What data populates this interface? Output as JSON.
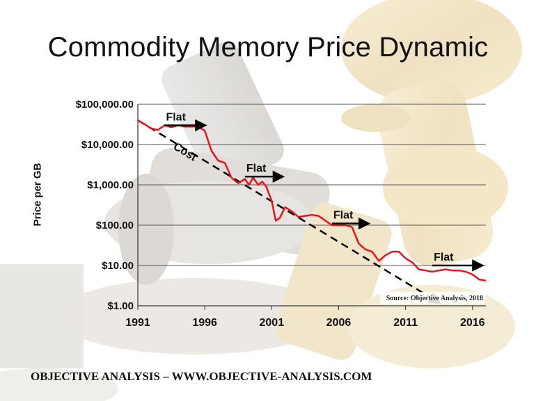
{
  "title": "Commodity Memory Price Dynamic",
  "footer": "OBJECTIVE ANALYSIS – WWW.OBJECTIVE-ANALYSIS.COM",
  "chart_data": {
    "type": "line",
    "title": "Commodity Memory Price Dynamic",
    "ylabel": "Price per GB",
    "xlabel": "",
    "yscale": "log",
    "ylim": [
      1,
      100000
    ],
    "xlim": [
      1991,
      2017
    ],
    "xticks": [
      1991,
      1996,
      2001,
      2006,
      2011,
      2016
    ],
    "xtick_labels": [
      "1991",
      "1996",
      "2001",
      "2006",
      "2011",
      "2016"
    ],
    "yticks": [
      1,
      10,
      100,
      1000,
      10000,
      100000
    ],
    "ytick_labels": [
      "$1.00",
      "$10.00",
      "$100.00",
      "$1,000.00",
      "$10,000.00",
      "$100,000.00"
    ],
    "grid": "horizontal",
    "series": [
      {
        "color": "#e8141b",
        "x": [
          1991,
          1991.5,
          1992,
          1992.5,
          1993,
          1993.5,
          1994,
          1994.5,
          1995,
          1995.5,
          1996,
          1996.5,
          1997,
          1997.5,
          1998,
          1998.5,
          1999,
          1999.3,
          1999.6,
          2000,
          2000.3,
          2000.6,
          2001,
          2001.3,
          2001.6,
          2002,
          2002.5,
          2003,
          2003.5,
          2004,
          2004.5,
          2005,
          2005.5,
          2006,
          2006.5,
          2007,
          2007.5,
          2008,
          2008.5,
          2009,
          2009.5,
          2010,
          2010.5,
          2011,
          2011.5,
          2012,
          2012.5,
          2013,
          2013.5,
          2014,
          2014.5,
          2015,
          2015.5,
          2016,
          2016.5,
          2017
        ],
        "y": [
          40000,
          32000,
          25000,
          23000,
          30000,
          27000,
          30000,
          28000,
          28000,
          28000,
          22000,
          7000,
          4000,
          3500,
          1500,
          1100,
          1400,
          1000,
          1500,
          1000,
          1200,
          900,
          400,
          130,
          150,
          280,
          220,
          160,
          170,
          180,
          170,
          130,
          100,
          100,
          100,
          90,
          35,
          25,
          22,
          13,
          18,
          22,
          22,
          15,
          12,
          8,
          7.5,
          7,
          7.5,
          8,
          7.5,
          7.5,
          7,
          6,
          4.5,
          4.2
        ]
      }
    ],
    "annotations": [
      {
        "text": "Flat",
        "x_start": 1993,
        "x_end": 1996,
        "y": 30000
      },
      {
        "text": "Flat",
        "x_start": 1999,
        "x_end": 2001.8,
        "y": 1600
      },
      {
        "text": "Flat",
        "x_start": 2005.5,
        "x_end": 2008.2,
        "y": 110
      },
      {
        "text": "Flat",
        "x_start": 2013,
        "x_end": 2016.7,
        "y": 10
      },
      {
        "text": "Cost",
        "x_start": 1991,
        "x_end": 2013.5,
        "y_start": 40000,
        "y_end": 1.2
      }
    ],
    "source_note": "Source: Objective Analysis, 2018"
  }
}
